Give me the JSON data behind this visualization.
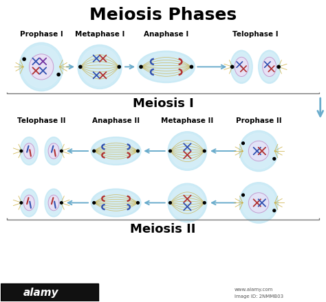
{
  "title": "Meiosis Phases",
  "title_fontsize": 18,
  "title_fontweight": "bold",
  "bg_color": "#ffffff",
  "meiosis1_label": "Meiosis I",
  "meiosis2_label": "Meiosis II",
  "meiosis1_phases": [
    "Prophase I",
    "Metaphase I",
    "Anaphase I",
    "Telophase I"
  ],
  "meiosis2_phases_left_to_right": [
    "Telophase II",
    "Anaphase II",
    "Metaphase II",
    "Prophase II"
  ],
  "cell_outer_color": "#c5e8f5",
  "cell_inner_color": "#daf0f8",
  "nucleus_color": "#f0ddf5",
  "spindle_color": "#c8a830",
  "chr_blue": "#3050b0",
  "chr_red": "#b03030",
  "chr_purple": "#7030a0",
  "arrow_color": "#6aaccc",
  "bracket_color": "#777777",
  "label_fontsize": 7.5,
  "section_label_fontsize": 13,
  "alamy_bg": "#111111",
  "watermark_text": "alamy",
  "watermark_fontsize": 11,
  "image_id_text": "Image ID: 2NMMB03",
  "url_text": "www.alamy.com"
}
